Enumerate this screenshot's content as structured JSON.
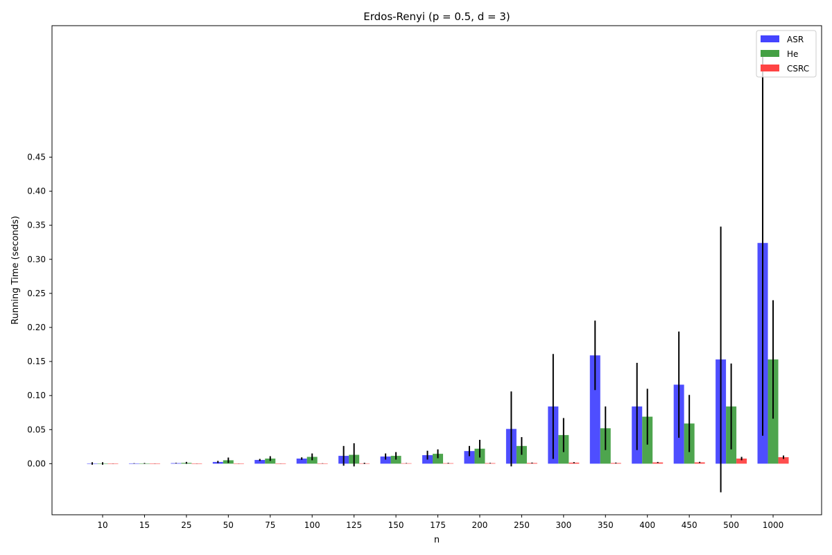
{
  "chart_data": {
    "type": "bar",
    "title": "Erdos-Renyi (p = 0.5, d = 3)",
    "xlabel": "n",
    "ylabel": "Running Time (seconds)",
    "ylim": [
      -0.075,
      0.643
    ],
    "yticks": [
      0.0,
      0.05,
      0.1,
      0.15,
      0.2,
      0.25,
      0.3,
      0.35,
      0.4,
      0.45
    ],
    "ytick_labels": [
      "0.00",
      "0.05",
      "0.10",
      "0.15",
      "0.20",
      "0.25",
      "0.30",
      "0.35",
      "0.40",
      "0.45"
    ],
    "categories": [
      "10",
      "15",
      "25",
      "50",
      "75",
      "100",
      "125",
      "150",
      "175",
      "200",
      "250",
      "300",
      "350",
      "400",
      "450",
      "500",
      "1000"
    ],
    "grid": false,
    "legend_position": "top-right",
    "series": [
      {
        "name": "ASR",
        "color": "#4444ff",
        "values": [
          0.0003,
          0.0004,
          0.0008,
          0.0025,
          0.0055,
          0.0075,
          0.0115,
          0.0105,
          0.0125,
          0.0185,
          0.051,
          0.084,
          0.159,
          0.084,
          0.116,
          0.153,
          0.324
        ],
        "errors": [
          0.0018,
          0.0003,
          0.0004,
          0.0016,
          0.0015,
          0.0018,
          0.0145,
          0.0045,
          0.0065,
          0.0075,
          0.055,
          0.077,
          0.051,
          0.064,
          0.078,
          0.195,
          0.283
        ]
      },
      {
        "name": "He",
        "color": "#44a044",
        "values": [
          0.0003,
          0.0004,
          0.0012,
          0.005,
          0.0075,
          0.01,
          0.013,
          0.0115,
          0.0145,
          0.022,
          0.026,
          0.042,
          0.052,
          0.069,
          0.059,
          0.084,
          0.153
        ],
        "errors": [
          0.0018,
          0.0006,
          0.0014,
          0.004,
          0.0035,
          0.005,
          0.017,
          0.0055,
          0.0065,
          0.013,
          0.013,
          0.025,
          0.032,
          0.041,
          0.042,
          0.063,
          0.087
        ]
      },
      {
        "name": "CSRC",
        "color": "#ff4444",
        "values": [
          0.0001,
          0.0001,
          0.0002,
          0.0002,
          0.0003,
          0.0004,
          0.0005,
          0.0006,
          0.0007,
          0.0008,
          0.001,
          0.0015,
          0.001,
          0.0018,
          0.0019,
          0.0075,
          0.0095
        ],
        "errors": [
          0.0001,
          0.0001,
          0.0001,
          0.0001,
          0.0001,
          0.0002,
          0.0008,
          0.0003,
          0.0005,
          0.0004,
          0.0006,
          0.0008,
          0.0006,
          0.0007,
          0.0008,
          0.0025,
          0.0025
        ]
      }
    ]
  }
}
